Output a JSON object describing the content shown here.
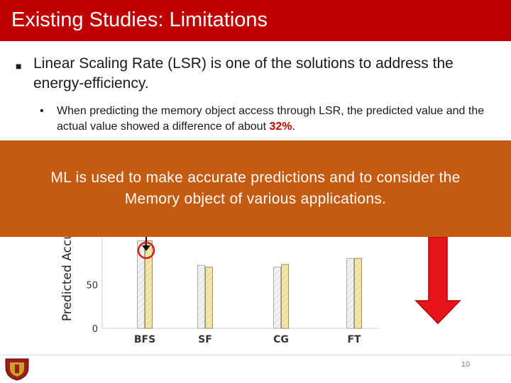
{
  "slide": {
    "title": "Existing Studies: Limitations",
    "bullet_main": "Linear Scaling Rate (LSR) is one of the solutions to address the energy-efficiency.",
    "bullet_sub_prefix": "When predicting the memory object access through LSR, the predicted value and the actual value showed a difference of about ",
    "bullet_sub_highlight": "32%",
    "bullet_sub_suffix": ".",
    "banner_text": "ML is used to make accurate predictions and to consider the Memory object of various applications.",
    "page_number": "10",
    "colors": {
      "title_bar": "#c00000",
      "banner": "#c55a11",
      "highlight": "#c00000",
      "arrow": "#e8141b"
    },
    "icons": {
      "bullet_main": "square-bullet-icon",
      "bullet_sub": "dot-bullet-icon",
      "logo": "shield-crest-icon"
    }
  },
  "chart_data": {
    "type": "bar",
    "ylabel": "Predicted Accu",
    "categories": [
      "BFS",
      "SF",
      "CG",
      "FT"
    ],
    "y_ticks": [
      "0",
      "50"
    ],
    "ylim": [
      0,
      132
    ],
    "series": [
      {
        "values": [
          100,
          72,
          70,
          80
        ]
      },
      {
        "values": [
          100,
          70,
          73,
          80
        ]
      }
    ],
    "annotations": [
      "circle-marker-on-BFS",
      "down-arrow-right"
    ]
  }
}
